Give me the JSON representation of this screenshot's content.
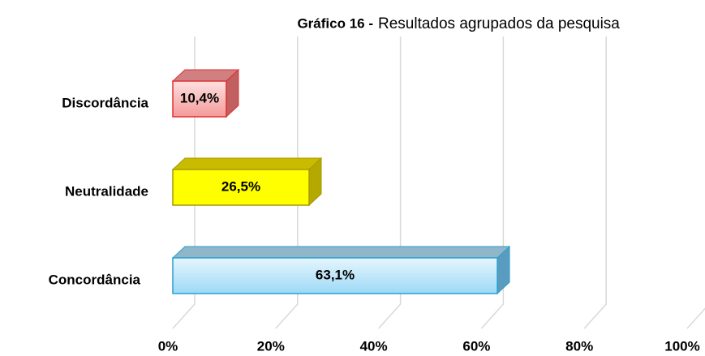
{
  "chart_data": {
    "type": "bar3d_horizontal",
    "title_label": "Gráfico 16 -",
    "title": "Resultados agrupados da pesquisa",
    "categories": [
      "Discordância",
      "Neutralidade",
      "Concordância"
    ],
    "values": [
      10.4,
      26.5,
      63.1
    ],
    "value_labels": [
      "10,4%",
      "26,5%",
      "63,1%"
    ],
    "colors": [
      "#f9a9a9",
      "#ffff00",
      "#bfe8fb"
    ],
    "xlim": [
      0,
      100
    ],
    "xticks": [
      {
        "value": 0,
        "label": "0%"
      },
      {
        "value": 20,
        "label": "20%"
      },
      {
        "value": 40,
        "label": "40%"
      },
      {
        "value": 60,
        "label": "60%"
      },
      {
        "value": 80,
        "label": "80%"
      },
      {
        "value": 100,
        "label": "100%"
      }
    ],
    "grid": true
  }
}
